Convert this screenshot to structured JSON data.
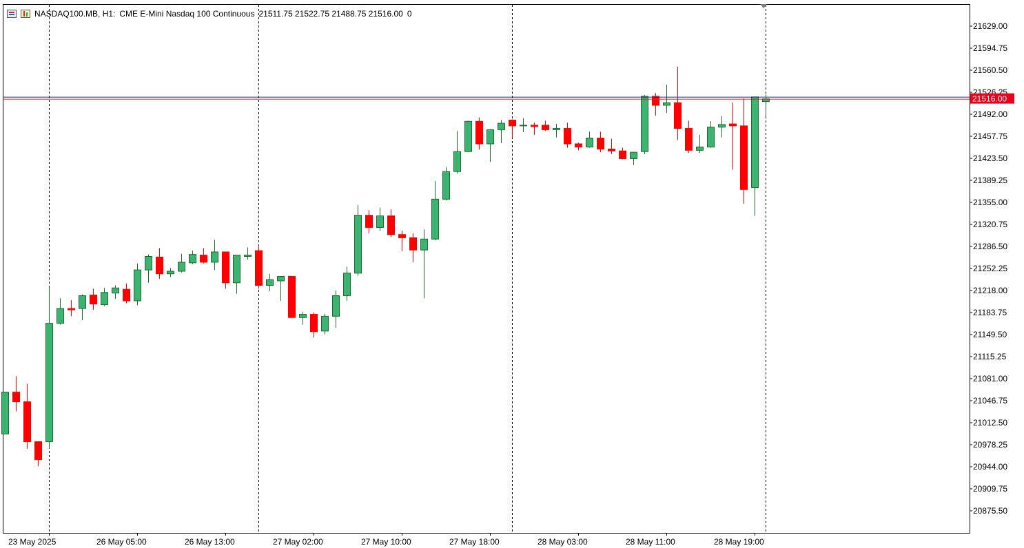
{
  "header": {
    "symbol": "NASDAQ100.MB, H1:",
    "description": "CME E-Mini Nasdaq 100 Continuous",
    "ohlc": "21511.75 21522.75 21488.75 21516.00",
    "volume": "0"
  },
  "colors": {
    "bull": "#3cb371",
    "bear": "#ff0000",
    "bid_line": "#1f2f8f",
    "ask_line": "#e02020",
    "price_tag": "#e8001c"
  },
  "chart_data": {
    "type": "candlestick",
    "timeframe": "H1",
    "ylim": [
      20841.25,
      21663.25
    ],
    "y_ticks": [
      "21629.00",
      "21594.75",
      "21560.50",
      "21526.25",
      "21492.00",
      "21457.75",
      "21423.50",
      "21389.25",
      "21355.00",
      "21320.75",
      "21286.50",
      "21252.25",
      "21218.00",
      "21183.75",
      "21149.50",
      "21115.25",
      "21081.00",
      "21046.75",
      "21012.50",
      "20978.25",
      "20944.00",
      "20909.75",
      "20875.50"
    ],
    "x_labels": [
      {
        "index": 4,
        "label": "23 May 2025"
      },
      {
        "index": 12,
        "label": "26 May 05:00"
      },
      {
        "index": 20,
        "label": "26 May 13:00"
      },
      {
        "index": 28,
        "label": "27 May 02:00"
      },
      {
        "index": 36,
        "label": "27 May 10:00"
      },
      {
        "index": 44,
        "label": "27 May 18:00"
      },
      {
        "index": 52,
        "label": "28 May 03:00"
      },
      {
        "index": 60,
        "label": "28 May 11:00"
      },
      {
        "index": 68,
        "label": "28 May 19:00"
      }
    ],
    "session_separators": [
      4,
      23,
      46,
      69
    ],
    "current_price": "21516.00",
    "candles": [
      {
        "o": 20995,
        "h": 21060,
        "l": 20995,
        "c": 21060
      },
      {
        "o": 21060,
        "h": 21085,
        "l": 21030,
        "c": 21045
      },
      {
        "o": 21045,
        "h": 21073,
        "l": 20972,
        "c": 20983
      },
      {
        "o": 20983,
        "h": 20983,
        "l": 20945,
        "c": 20955
      },
      {
        "o": 20983,
        "h": 21224,
        "l": 20972,
        "c": 21167
      },
      {
        "o": 21167,
        "h": 21206,
        "l": 21165,
        "c": 21190
      },
      {
        "o": 21190,
        "h": 21203,
        "l": 21178,
        "c": 21188
      },
      {
        "o": 21190,
        "h": 21212,
        "l": 21172,
        "c": 21210
      },
      {
        "o": 21211,
        "h": 21221,
        "l": 21188,
        "c": 21197
      },
      {
        "o": 21196,
        "h": 21222,
        "l": 21194,
        "c": 21215
      },
      {
        "o": 21214,
        "h": 21226,
        "l": 21205,
        "c": 21222
      },
      {
        "o": 21220,
        "h": 21229,
        "l": 21198,
        "c": 21202
      },
      {
        "o": 21202,
        "h": 21260,
        "l": 21195,
        "c": 21250
      },
      {
        "o": 21250,
        "h": 21274,
        "l": 21230,
        "c": 21271
      },
      {
        "o": 21270,
        "h": 21284,
        "l": 21236,
        "c": 21244
      },
      {
        "o": 21244,
        "h": 21253,
        "l": 21239,
        "c": 21248
      },
      {
        "o": 21248,
        "h": 21275,
        "l": 21246,
        "c": 21262
      },
      {
        "o": 21261,
        "h": 21280,
        "l": 21259,
        "c": 21274
      },
      {
        "o": 21273,
        "h": 21284,
        "l": 21260,
        "c": 21262
      },
      {
        "o": 21262,
        "h": 21297,
        "l": 21250,
        "c": 21278
      },
      {
        "o": 21278,
        "h": 21278,
        "l": 21221,
        "c": 21230
      },
      {
        "o": 21230,
        "h": 21273,
        "l": 21213,
        "c": 21273
      },
      {
        "o": 21271,
        "h": 21285,
        "l": 21266,
        "c": 21273
      },
      {
        "o": 21280,
        "h": 21286,
        "l": 21221,
        "c": 21226
      },
      {
        "o": 21226,
        "h": 21244,
        "l": 21217,
        "c": 21235
      },
      {
        "o": 21233,
        "h": 21239,
        "l": 21202,
        "c": 21240
      },
      {
        "o": 21240,
        "h": 21240,
        "l": 21175,
        "c": 21176
      },
      {
        "o": 21176,
        "h": 21185,
        "l": 21165,
        "c": 21181
      },
      {
        "o": 21181,
        "h": 21184,
        "l": 21145,
        "c": 21154
      },
      {
        "o": 21155,
        "h": 21182,
        "l": 21150,
        "c": 21178
      },
      {
        "o": 21178,
        "h": 21218,
        "l": 21160,
        "c": 21210
      },
      {
        "o": 21210,
        "h": 21255,
        "l": 21202,
        "c": 21245
      },
      {
        "o": 21245,
        "h": 21351,
        "l": 21241,
        "c": 21335
      },
      {
        "o": 21335,
        "h": 21343,
        "l": 21307,
        "c": 21316
      },
      {
        "o": 21316,
        "h": 21347,
        "l": 21311,
        "c": 21334
      },
      {
        "o": 21334,
        "h": 21344,
        "l": 21301,
        "c": 21305
      },
      {
        "o": 21305,
        "h": 21311,
        "l": 21279,
        "c": 21300
      },
      {
        "o": 21300,
        "h": 21307,
        "l": 21262,
        "c": 21281
      },
      {
        "o": 21281,
        "h": 21313,
        "l": 21206,
        "c": 21298
      },
      {
        "o": 21298,
        "h": 21388,
        "l": 21296,
        "c": 21360
      },
      {
        "o": 21360,
        "h": 21410,
        "l": 21358,
        "c": 21403
      },
      {
        "o": 21403,
        "h": 21466,
        "l": 21400,
        "c": 21434
      },
      {
        "o": 21434,
        "h": 21482,
        "l": 21433,
        "c": 21481
      },
      {
        "o": 21481,
        "h": 21487,
        "l": 21437,
        "c": 21446
      },
      {
        "o": 21446,
        "h": 21469,
        "l": 21418,
        "c": 21468
      },
      {
        "o": 21468,
        "h": 21483,
        "l": 21447,
        "c": 21478
      },
      {
        "o": 21483,
        "h": 21484,
        "l": 21455,
        "c": 21474
      },
      {
        "o": 21474,
        "h": 21486,
        "l": 21464,
        "c": 21475
      },
      {
        "o": 21475,
        "h": 21479,
        "l": 21460,
        "c": 21473
      },
      {
        "o": 21475,
        "h": 21482,
        "l": 21466,
        "c": 21468
      },
      {
        "o": 21468,
        "h": 21477,
        "l": 21456,
        "c": 21470
      },
      {
        "o": 21470,
        "h": 21479,
        "l": 21440,
        "c": 21446
      },
      {
        "o": 21446,
        "h": 21448,
        "l": 21436,
        "c": 21441
      },
      {
        "o": 21441,
        "h": 21465,
        "l": 21440,
        "c": 21455
      },
      {
        "o": 21455,
        "h": 21465,
        "l": 21433,
        "c": 21438
      },
      {
        "o": 21438,
        "h": 21454,
        "l": 21430,
        "c": 21435
      },
      {
        "o": 21435,
        "h": 21440,
        "l": 21422,
        "c": 21423
      },
      {
        "o": 21423,
        "h": 21433,
        "l": 21413,
        "c": 21433
      },
      {
        "o": 21434,
        "h": 21522,
        "l": 21430,
        "c": 21520
      },
      {
        "o": 21520,
        "h": 21525,
        "l": 21490,
        "c": 21506
      },
      {
        "o": 21506,
        "h": 21538,
        "l": 21494,
        "c": 21510
      },
      {
        "o": 21510,
        "h": 21566,
        "l": 21452,
        "c": 21470
      },
      {
        "o": 21470,
        "h": 21482,
        "l": 21432,
        "c": 21436
      },
      {
        "o": 21436,
        "h": 21460,
        "l": 21432,
        "c": 21441
      },
      {
        "o": 21441,
        "h": 21481,
        "l": 21440,
        "c": 21472
      },
      {
        "o": 21472,
        "h": 21489,
        "l": 21456,
        "c": 21476
      },
      {
        "o": 21477,
        "h": 21510,
        "l": 21406,
        "c": 21474
      },
      {
        "o": 21474,
        "h": 21517,
        "l": 21353,
        "c": 21375
      },
      {
        "o": 21378,
        "h": 21519,
        "l": 21334,
        "c": 21519
      },
      {
        "o": 21511.75,
        "h": 21522.75,
        "l": 21488.75,
        "c": 21516
      }
    ]
  }
}
